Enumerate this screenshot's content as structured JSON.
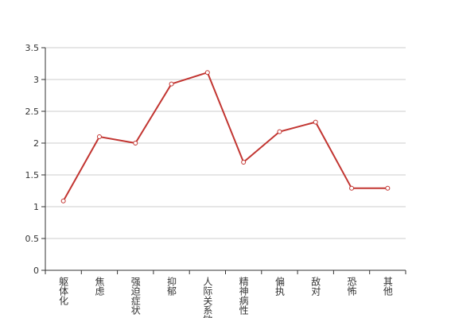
{
  "chart_data": {
    "type": "line",
    "categories": [
      "躯体化",
      "焦虑",
      "强迫症状",
      "抑郁",
      "人际关系敏感",
      "精神病性",
      "偏执",
      "敌对",
      "恐怖",
      "其他"
    ],
    "values": [
      1.09,
      2.1,
      2.0,
      2.93,
      3.11,
      1.7,
      2.18,
      2.33,
      1.29,
      1.29
    ],
    "color": "#c23531",
    "ylim": [
      0,
      3.5
    ],
    "yticks": [
      0,
      0.5,
      1,
      1.5,
      2,
      2.5,
      3,
      3.5
    ],
    "grid": true
  }
}
